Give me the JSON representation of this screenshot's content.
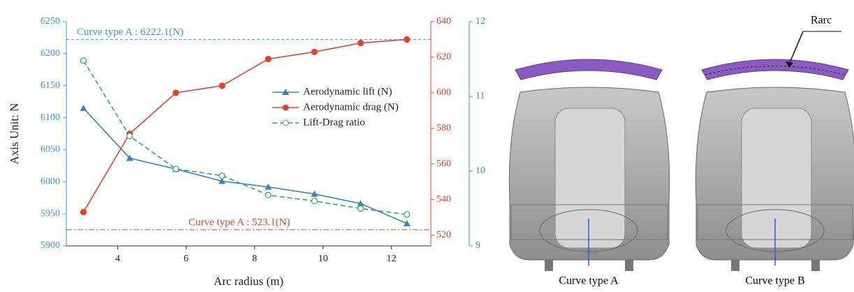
{
  "chart_data": {
    "type": "line",
    "x_label": "Arc radius (m)",
    "y_label": "Axis Unit: N",
    "xlim": [
      2.5,
      13.15
    ],
    "xticks": [
      4,
      6,
      8,
      10,
      12
    ],
    "ylim": [
      5900,
      6250
    ],
    "yticks": [
      5900,
      5950,
      6000,
      6050,
      6100,
      6150,
      6200,
      6250
    ],
    "y_color": "#3a9ad9",
    "y2lim": [
      514,
      640
    ],
    "y2ticks": [
      520,
      540,
      560,
      580,
      600,
      620,
      640
    ],
    "y2_color": "#e8402a",
    "y3lim": [
      9,
      12
    ],
    "y3ticks": [
      9,
      10,
      11,
      12
    ],
    "y3_color": "#2eaa66",
    "x": [
      3,
      4.35,
      5.7,
      7.05,
      8.4,
      9.75,
      11.1,
      12.45
    ],
    "series": [
      {
        "name": "Aerodynamic lift (N)",
        "color": "#3b82c4",
        "marker": "triangle",
        "axis": "y",
        "values": [
          6115,
          6037,
          6020,
          6001,
          5992,
          5981,
          5966,
          5935
        ]
      },
      {
        "name": "Aerodynamic drag (N)",
        "color": "#e8402a",
        "marker": "circle",
        "axis": "y2",
        "values": [
          533,
          577,
          600,
          604,
          619,
          623,
          628,
          630
        ]
      },
      {
        "name": "Lift-Drag ratio",
        "color": "#2eaa66",
        "marker": "open-circle",
        "dashed": true,
        "axis": "y3",
        "values": [
          11.48,
          10.47,
          10.03,
          9.94,
          9.68,
          9.6,
          9.5,
          9.42
        ]
      }
    ],
    "annotations": [
      {
        "text": "Curve type A : 6222.1(N)",
        "value": 6222.1,
        "axis": "y",
        "color": "#3a9ad9"
      },
      {
        "text": "Curve type A : 523.1(N)",
        "value": 523.1,
        "axis": "y2",
        "color": "#e8402a"
      }
    ]
  },
  "figures": {
    "panels": [
      {
        "label": "Curve type A"
      },
      {
        "label": "Curve type B",
        "annotation": "Rarc"
      }
    ]
  }
}
